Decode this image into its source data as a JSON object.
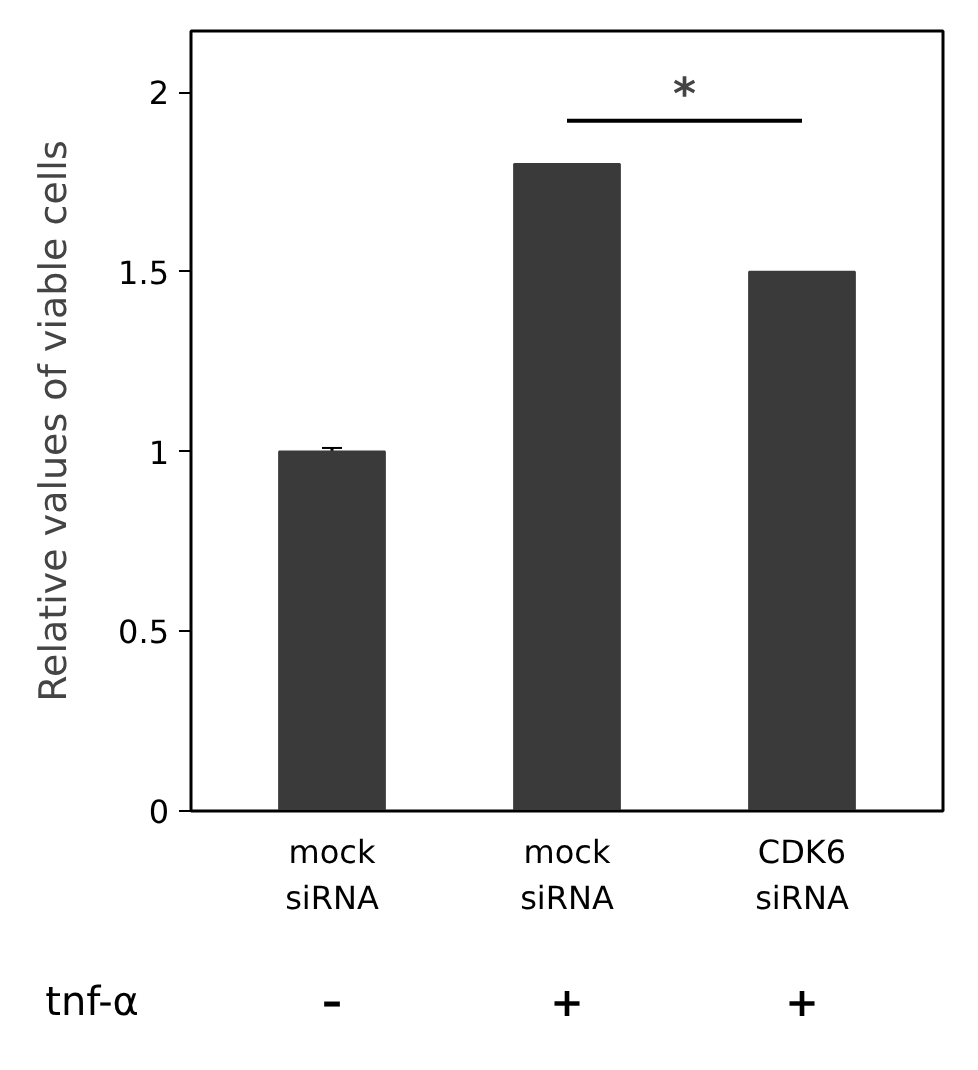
{
  "chart_data": {
    "type": "bar",
    "ylabel": "Relative values of viable cells",
    "categories": [
      "mock\nsiRNA",
      "mock\nsiRNA",
      "CDK6\nsiRNA"
    ],
    "values": [
      1.0,
      1.8,
      1.5
    ],
    "color": "#3a3a3a",
    "errors": [
      0.01,
      null,
      null
    ],
    "ylim": [
      0,
      2.17
    ],
    "yticks": [
      0,
      0.5,
      1,
      1.5,
      2
    ],
    "grid": false,
    "annotations": [
      "*",
      "tnf-α",
      "–",
      "+",
      "+"
    ]
  }
}
